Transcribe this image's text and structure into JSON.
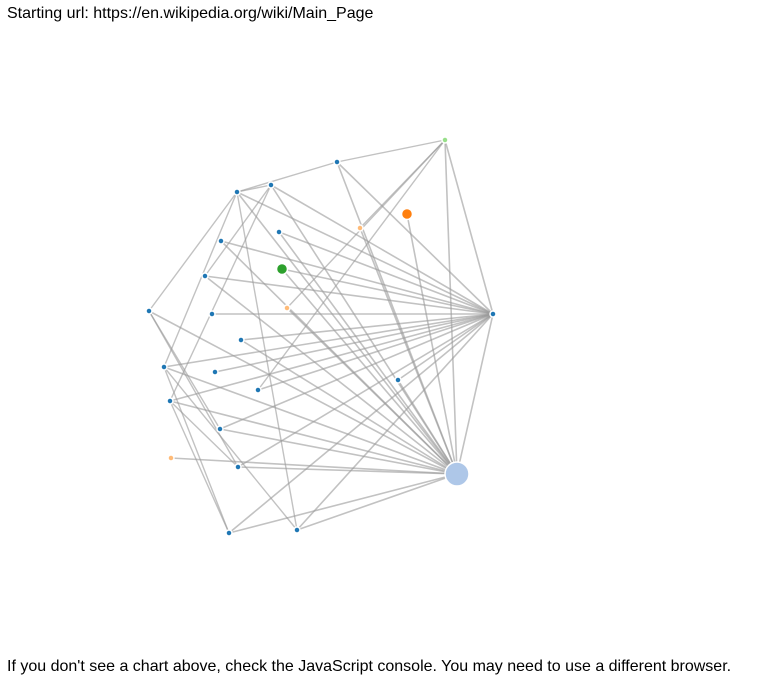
{
  "header": {
    "starting_url_text": "Starting url: https://en.wikipedia.org/wiki/Main_Page"
  },
  "footer": {
    "note": "If you don't see a chart above, check the JavaScript console. You may need to use a different browser."
  },
  "colors": {
    "link": "#999999",
    "node_stroke": "#ffffff"
  },
  "graph": {
    "nodes": [
      {
        "id": "hub-bottom",
        "color": "#aec7e8",
        "size": "large"
      },
      {
        "id": "hub-right",
        "color": "#1f77b4",
        "size": "small"
      },
      {
        "id": "top-light-green",
        "color": "#98df8a",
        "size": "small"
      },
      {
        "id": "top-blue",
        "color": "#1f77b4",
        "size": "small"
      },
      {
        "id": "orange",
        "color": "#ff7f0e",
        "size": "medium"
      },
      {
        "id": "n-ul-1",
        "color": "#1f77b4",
        "size": "small"
      },
      {
        "id": "n-ul-2",
        "color": "#1f77b4",
        "size": "small"
      },
      {
        "id": "light-orange-top",
        "color": "#ffbb78",
        "size": "small"
      },
      {
        "id": "n-279-232",
        "color": "#1f77b4",
        "size": "small"
      },
      {
        "id": "n-221-241",
        "color": "#1f77b4",
        "size": "small"
      },
      {
        "id": "green",
        "color": "#2ca02c",
        "size": "medium"
      },
      {
        "id": "n-205-276",
        "color": "#1f77b4",
        "size": "small"
      },
      {
        "id": "light-orange-mid",
        "color": "#ffbb78",
        "size": "small"
      },
      {
        "id": "n-left-149",
        "color": "#1f77b4",
        "size": "small"
      },
      {
        "id": "n-212-314",
        "color": "#1f77b4",
        "size": "small"
      },
      {
        "id": "n-241-340",
        "color": "#1f77b4",
        "size": "small"
      },
      {
        "id": "n-164-367",
        "color": "#1f77b4",
        "size": "small"
      },
      {
        "id": "n-215-372",
        "color": "#1f77b4",
        "size": "small"
      },
      {
        "id": "n-398-380",
        "color": "#1f77b4",
        "size": "small"
      },
      {
        "id": "n-258-390",
        "color": "#1f77b4",
        "size": "small"
      },
      {
        "id": "n-170-401",
        "color": "#1f77b4",
        "size": "small"
      },
      {
        "id": "n-220-429",
        "color": "#1f77b4",
        "size": "small"
      },
      {
        "id": "light-orange-left",
        "color": "#ffbb78",
        "size": "small"
      },
      {
        "id": "n-238-467",
        "color": "#1f77b4",
        "size": "small"
      },
      {
        "id": "n-297-530",
        "color": "#1f77b4",
        "size": "small"
      },
      {
        "id": "n-229-533",
        "color": "#1f77b4",
        "size": "small"
      }
    ],
    "links": [
      [
        "hub-right",
        "top-light-green"
      ],
      [
        "hub-right",
        "top-blue"
      ],
      [
        "hub-right",
        "n-ul-1"
      ],
      [
        "hub-right",
        "n-ul-2"
      ],
      [
        "hub-right",
        "n-279-232"
      ],
      [
        "hub-right",
        "n-221-241"
      ],
      [
        "hub-right",
        "n-205-276"
      ],
      [
        "hub-right",
        "green"
      ],
      [
        "hub-right",
        "n-212-314"
      ],
      [
        "hub-right",
        "n-241-340"
      ],
      [
        "hub-right",
        "n-164-367"
      ],
      [
        "hub-right",
        "n-215-372"
      ],
      [
        "hub-right",
        "n-258-390"
      ],
      [
        "hub-right",
        "n-170-401"
      ],
      [
        "hub-right",
        "n-220-429"
      ],
      [
        "hub-right",
        "n-238-467"
      ],
      [
        "hub-right",
        "n-297-530"
      ],
      [
        "hub-right",
        "n-229-533"
      ],
      [
        "hub-right",
        "hub-bottom"
      ],
      [
        "hub-right",
        "n-398-380"
      ],
      [
        "hub-bottom",
        "top-light-green"
      ],
      [
        "hub-bottom",
        "top-blue"
      ],
      [
        "hub-bottom",
        "n-ul-1"
      ],
      [
        "hub-bottom",
        "n-ul-2"
      ],
      [
        "hub-bottom",
        "orange"
      ],
      [
        "hub-bottom",
        "light-orange-top"
      ],
      [
        "hub-bottom",
        "n-279-232"
      ],
      [
        "hub-bottom",
        "n-221-241"
      ],
      [
        "hub-bottom",
        "green"
      ],
      [
        "hub-bottom",
        "light-orange-mid"
      ],
      [
        "hub-bottom",
        "n-205-276"
      ],
      [
        "hub-bottom",
        "n-left-149"
      ],
      [
        "hub-bottom",
        "n-241-340"
      ],
      [
        "hub-bottom",
        "n-164-367"
      ],
      [
        "hub-bottom",
        "n-170-401"
      ],
      [
        "hub-bottom",
        "n-220-429"
      ],
      [
        "hub-bottom",
        "light-orange-left"
      ],
      [
        "hub-bottom",
        "n-238-467"
      ],
      [
        "hub-bottom",
        "n-297-530"
      ],
      [
        "hub-bottom",
        "n-229-533"
      ],
      [
        "hub-bottom",
        "n-398-380"
      ],
      [
        "top-light-green",
        "top-blue"
      ],
      [
        "top-light-green",
        "light-orange-top"
      ],
      [
        "top-light-green",
        "n-258-390"
      ],
      [
        "top-light-green",
        "light-orange-mid"
      ],
      [
        "top-blue",
        "n-ul-1"
      ],
      [
        "n-ul-1",
        "n-left-149"
      ],
      [
        "n-ul-1",
        "n-297-530"
      ],
      [
        "n-ul-1",
        "n-ul-2"
      ],
      [
        "n-ul-1",
        "n-164-367"
      ],
      [
        "n-ul-2",
        "n-205-276"
      ],
      [
        "n-ul-2",
        "n-170-401"
      ],
      [
        "n-left-149",
        "n-238-467"
      ],
      [
        "n-left-149",
        "n-220-429"
      ],
      [
        "n-164-367",
        "n-229-533"
      ],
      [
        "n-164-367",
        "n-297-530"
      ],
      [
        "n-170-401",
        "n-229-533"
      ],
      [
        "n-170-401",
        "n-238-467"
      ]
    ]
  }
}
